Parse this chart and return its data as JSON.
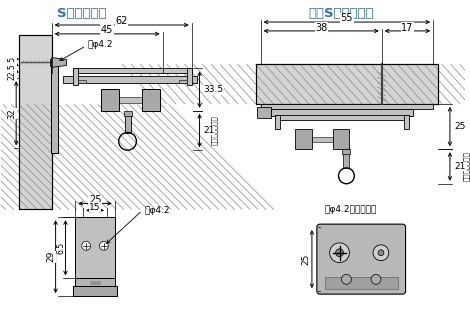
{
  "title_left": "Sブラケット",
  "title_right": "天井Sブラケット",
  "title_color": "#2E75B6",
  "bg_color": "#ffffff",
  "note_kan": "（カン下寸法）",
  "label_ana": "稴φ4.2",
  "label_ana2": "稴φ4.2（座堀付）"
}
